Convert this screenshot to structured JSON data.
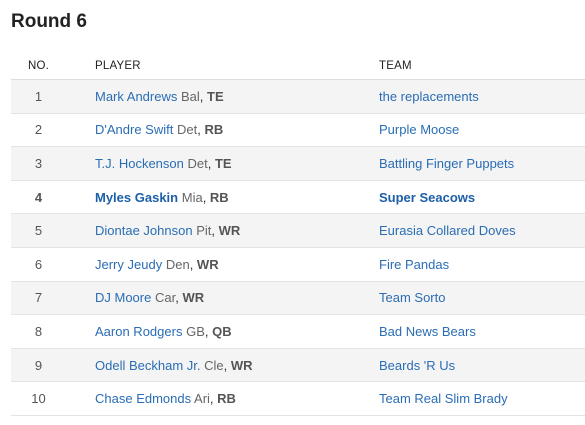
{
  "round_title": "Round 6",
  "columns": {
    "no": "NO.",
    "player": "PLAYER",
    "team": "TEAM"
  },
  "picks": [
    {
      "no": "1",
      "player": "Mark Andrews",
      "nfl_team": "Bal",
      "pos": "TE",
      "team": "the replacements"
    },
    {
      "no": "2",
      "player": "D'Andre Swift",
      "nfl_team": "Det",
      "pos": "RB",
      "team": "Purple Moose"
    },
    {
      "no": "3",
      "player": "T.J. Hockenson",
      "nfl_team": "Det",
      "pos": "TE",
      "team": "Battling Finger Puppets"
    },
    {
      "no": "4",
      "player": "Myles Gaskin",
      "nfl_team": "Mia",
      "pos": "RB",
      "team": "Super Seacows"
    },
    {
      "no": "5",
      "player": "Diontae Johnson",
      "nfl_team": "Pit",
      "pos": "WR",
      "team": "Eurasia Collared Doves"
    },
    {
      "no": "6",
      "player": "Jerry Jeudy",
      "nfl_team": "Den",
      "pos": "WR",
      "team": "Fire Pandas"
    },
    {
      "no": "7",
      "player": "DJ Moore",
      "nfl_team": "Car",
      "pos": "WR",
      "team": "Team Sorto"
    },
    {
      "no": "8",
      "player": "Aaron Rodgers",
      "nfl_team": "GB",
      "pos": "QB",
      "team": "Bad News Bears"
    },
    {
      "no": "9",
      "player": "Odell Beckham Jr.",
      "nfl_team": "Cle",
      "pos": "WR",
      "team": "Beards 'R Us"
    },
    {
      "no": "10",
      "player": "Chase Edmonds",
      "nfl_team": "Ari",
      "pos": "RB",
      "team": "Team Real Slim Brady"
    }
  ]
}
